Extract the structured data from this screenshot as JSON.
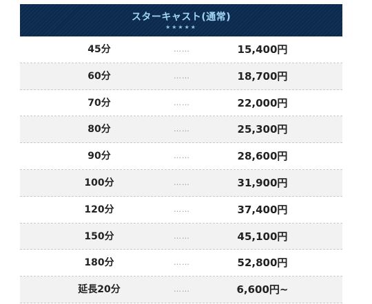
{
  "header": {
    "title": "スターキャスト(通常)",
    "stars": "★★★★★"
  },
  "separator": "……",
  "rows": [
    {
      "duration": "45分",
      "price": "15,400円"
    },
    {
      "duration": "60分",
      "price": "18,700円"
    },
    {
      "duration": "70分",
      "price": "22,000円"
    },
    {
      "duration": "80分",
      "price": "25,300円"
    },
    {
      "duration": "90分",
      "price": "28,600円"
    },
    {
      "duration": "100分",
      "price": "31,900円"
    },
    {
      "duration": "120分",
      "price": "37,400円"
    },
    {
      "duration": "150分",
      "price": "45,100円"
    },
    {
      "duration": "180分",
      "price": "52,800円"
    },
    {
      "duration": "延長20分",
      "price": "6,600円~"
    }
  ],
  "colors": {
    "header_bg": "#0b2a4e",
    "header_text": "#9fd6f3",
    "row_alt_bg": "#f2f2f2"
  }
}
